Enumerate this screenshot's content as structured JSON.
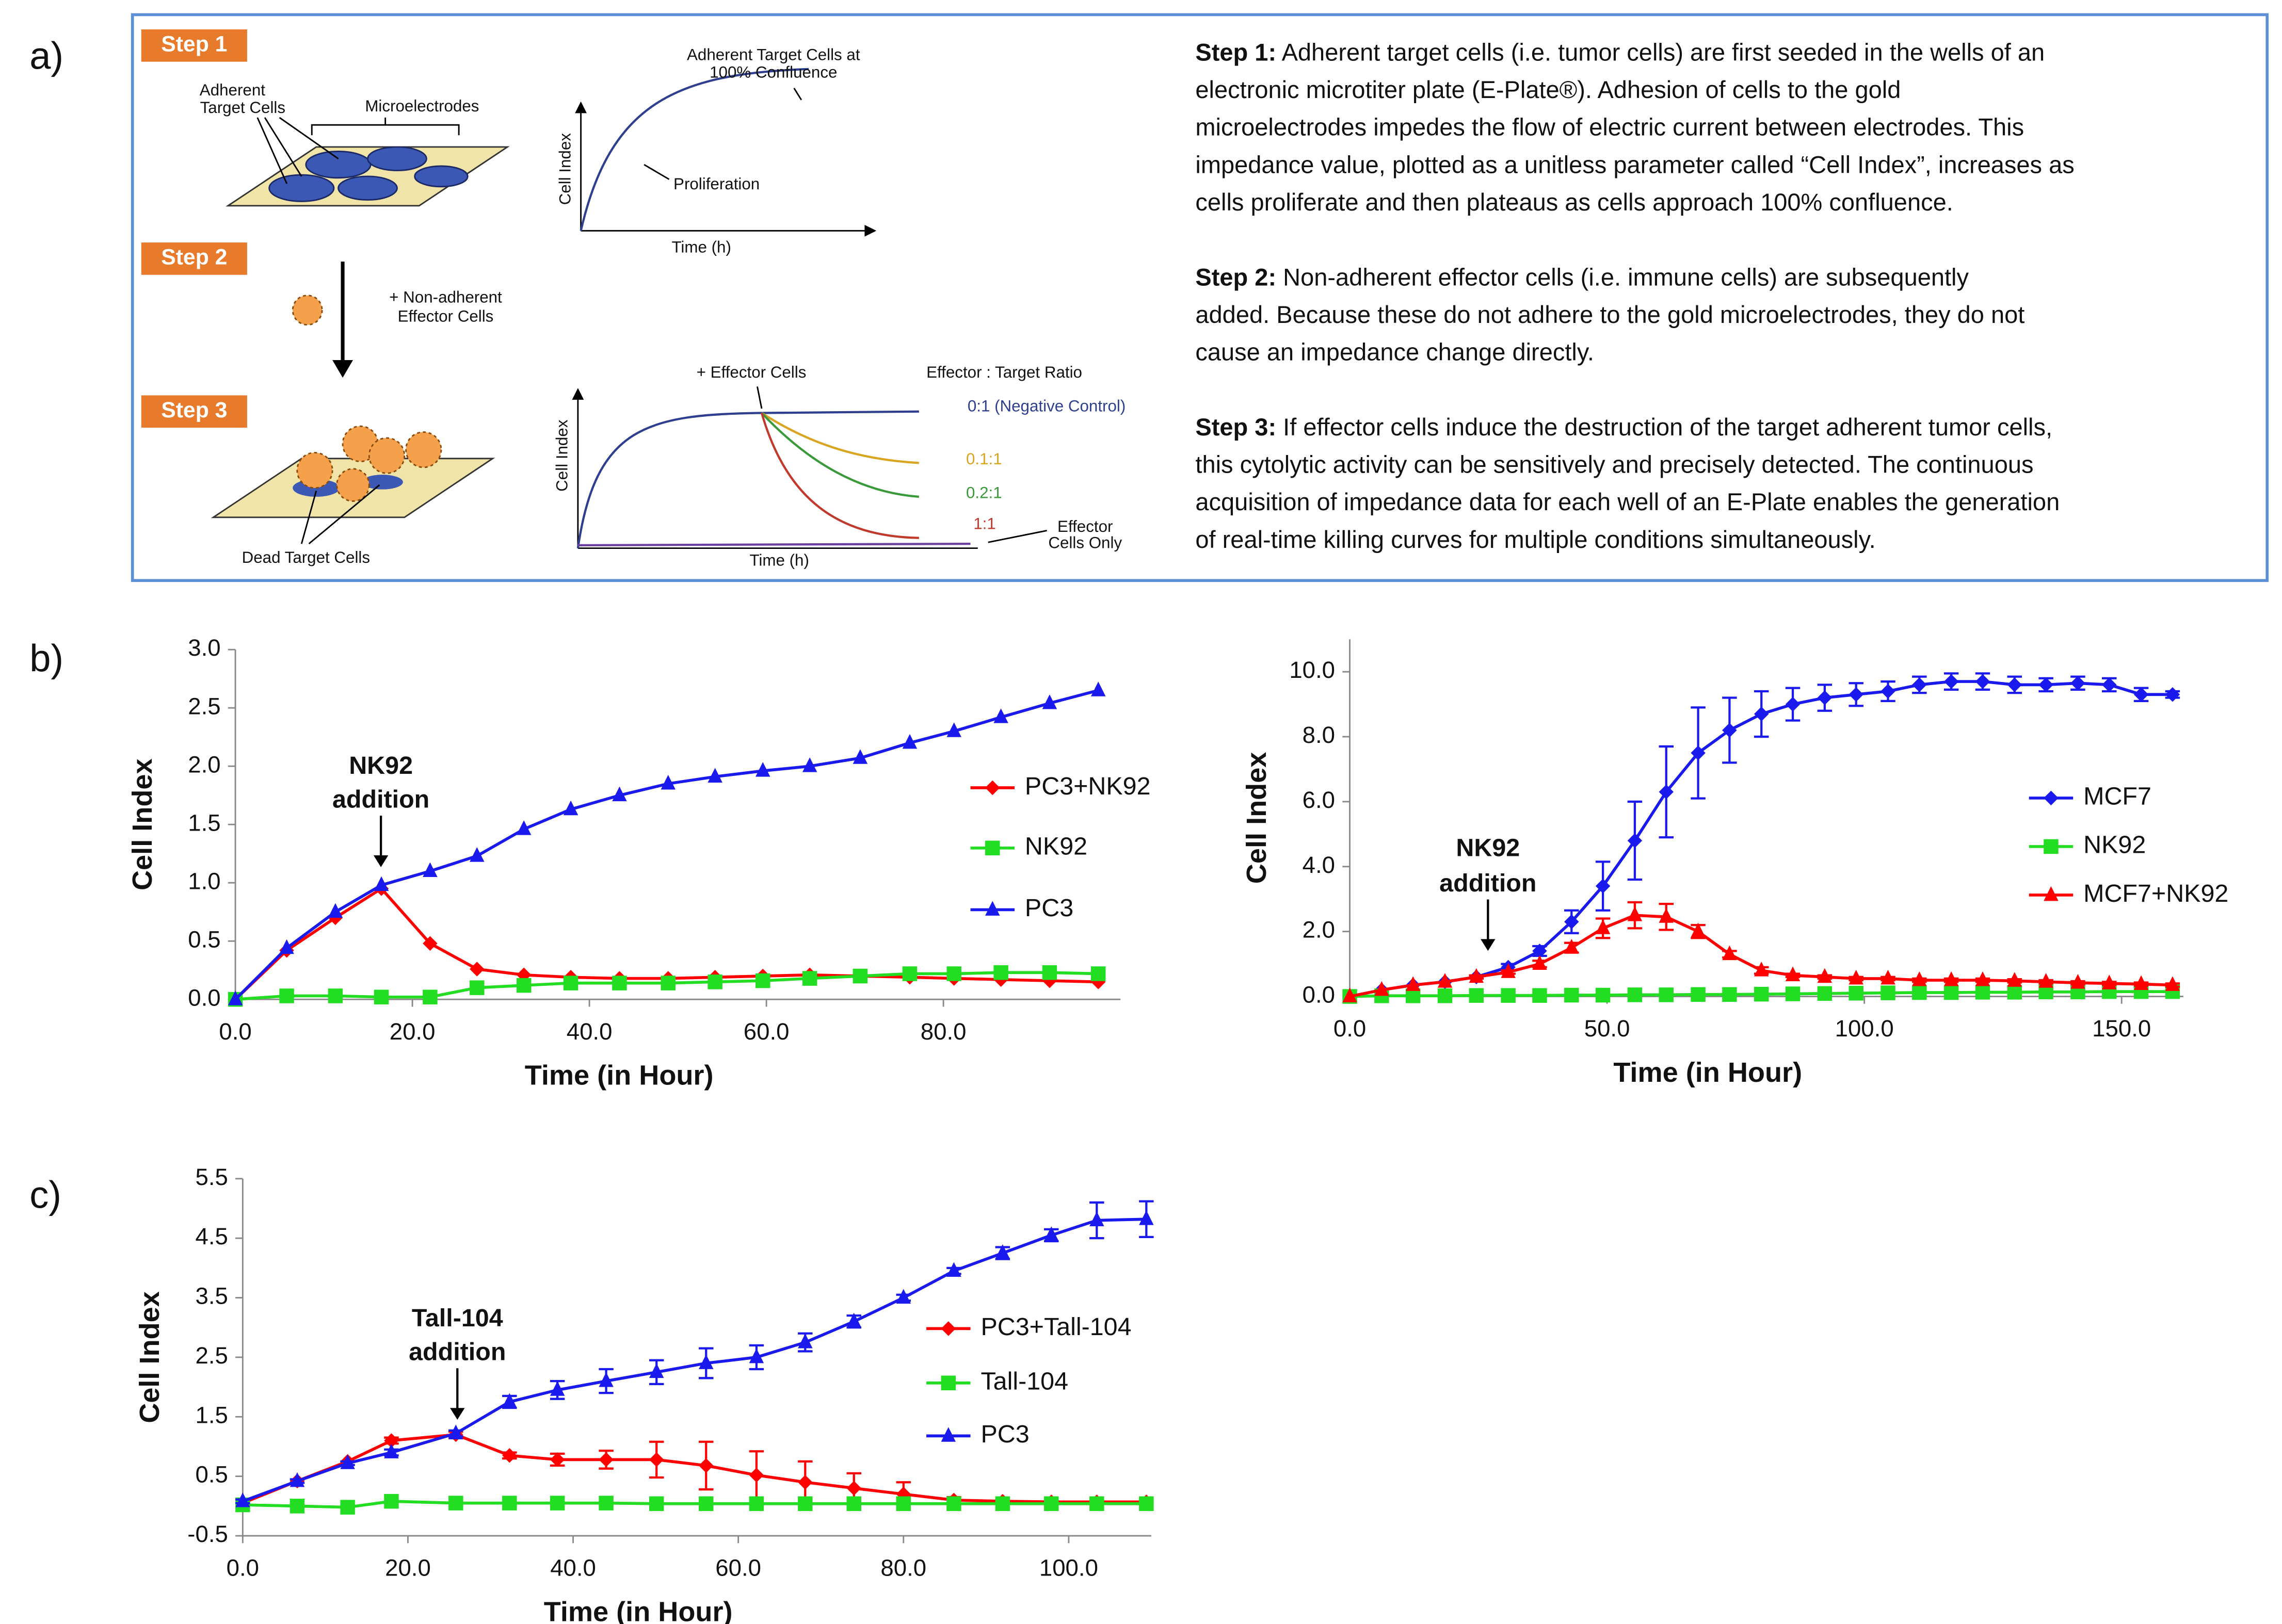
{
  "panel_labels": [
    "a)",
    "b)",
    "c)"
  ],
  "panel_a": {
    "steps": [
      "Step 1",
      "Step 2",
      "Step 3"
    ],
    "adherent_cells": [
      "Adherent",
      "Target Cells"
    ],
    "microelectrodes": "Microelectrodes",
    "effector_cells": [
      "+ Non-adherent",
      "Effector Cells"
    ],
    "dead_cells": "Dead Target Cells",
    "confluence": [
      "Adherent Target Cells at",
      "100% Confluence"
    ],
    "cell_index": "Cell Index",
    "proliferation": "Proliferation",
    "time": "Time (h)",
    "add_effector": "+ Effector Cells",
    "ratio_title": "Effector : Target Ratio",
    "ratios": [
      "0:1 (Negative Control)",
      "0.1:1",
      "0.2:1",
      "1:1"
    ],
    "effector_only": [
      "Effector",
      "Cells Only"
    ],
    "paragraphs": [
      {
        "lead": "Step 1:",
        "lines": [
          " Adherent target cells (i.e. tumor cells) are first seeded in the wells of an",
          "electronic microtiter plate (E-Plate®).  Adhesion of cells to the gold",
          "microelectrodes impedes the flow of electric current between electrodes.  This",
          "impedance value, plotted as a unitless parameter called “Cell Index”, increases as",
          "cells proliferate and then plateaus as cells approach 100% confluence."
        ]
      },
      {
        "lead": "Step 2:",
        "lines": [
          " Non-adherent effector cells (i.e. immune cells) are subsequently",
          "added.  Because these do not adhere to the gold microelectrodes, they do not",
          "cause an impedance change directly."
        ]
      },
      {
        "lead": "Step 3:",
        "lines": [
          " If effector cells induce the destruction of the target adherent tumor cells,",
          "this cytolytic activity can be sensitively and precisely detected.  The continuous",
          "acquisition of impedance data for each well of an E-Plate enables the generation",
          "of real-time killing curves for multiple conditions simultaneously."
        ]
      }
    ]
  },
  "chart_data": [
    {
      "type": "line",
      "x_label": "Time (in Hour)",
      "y_label": "Cell Index",
      "annotation": [
        "NK92",
        "addition"
      ],
      "legend": "right",
      "xlim": [
        0,
        100
      ],
      "xticks": [
        {
          "value": 0,
          "label": "0.0"
        },
        {
          "value": 20,
          "label": "20.0"
        },
        {
          "value": 40,
          "label": "40.0"
        },
        {
          "value": 60,
          "label": "60.0"
        },
        {
          "value": 80,
          "label": "80.0"
        }
      ],
      "ylim": [
        0,
        3
      ],
      "yticks": [
        {
          "value": 0,
          "label": "0.0"
        },
        0.5,
        {
          "value": 1,
          "label": "1.0"
        },
        1.5,
        {
          "value": 2,
          "label": "2.0"
        },
        2.5,
        {
          "value": 3,
          "label": "3.0"
        }
      ],
      "x": [
        0,
        5.8,
        11.3,
        16.5,
        22,
        27.3,
        32.6,
        37.9,
        43.4,
        48.9,
        54.2,
        59.6,
        64.9,
        70.6,
        76.2,
        81.2,
        86.5,
        92,
        97.5
      ],
      "series": [
        {
          "name": "PC3+NK92",
          "color": "#ff0000",
          "marker": "diamond",
          "values": [
            0,
            0.42,
            0.7,
            0.95,
            0.48,
            0.26,
            0.21,
            0.19,
            0.18,
            0.18,
            0.19,
            0.2,
            0.21,
            0.2,
            0.19,
            0.18,
            0.17,
            0.16,
            0.15
          ]
        },
        {
          "name": "NK92",
          "color": "#22dd22",
          "marker": "square",
          "values": [
            0,
            0.03,
            0.03,
            0.02,
            0.02,
            0.1,
            0.12,
            0.14,
            0.14,
            0.14,
            0.15,
            0.16,
            0.18,
            0.2,
            0.22,
            0.22,
            0.23,
            0.23,
            0.22
          ]
        },
        {
          "name": "PC3",
          "color": "#1a1aee",
          "marker": "triangle",
          "values": [
            0,
            0.44,
            0.75,
            0.98,
            1.1,
            1.23,
            1.46,
            1.63,
            1.75,
            1.85,
            1.91,
            1.96,
            2.0,
            2.07,
            2.2,
            2.3,
            2.42,
            2.54,
            2.65
          ]
        }
      ]
    },
    {
      "type": "line",
      "x_label": "Time (in Hour)",
      "y_label": "Cell Index",
      "annotation": [
        "NK92",
        "addition"
      ],
      "legend": "right",
      "xlim": [
        0,
        162
      ],
      "xticks": [
        {
          "value": 0,
          "label": "0.0"
        },
        {
          "value": 50,
          "label": "50.0"
        },
        {
          "value": 100,
          "label": "100.0"
        },
        {
          "value": 150,
          "label": "150.0"
        }
      ],
      "ylim": [
        0,
        11
      ],
      "yticks": [
        {
          "value": 0,
          "label": "0.0"
        },
        {
          "value": 2,
          "label": "2.0"
        },
        {
          "value": 4,
          "label": "4.0"
        },
        {
          "value": 6,
          "label": "6.0"
        },
        {
          "value": 8,
          "label": "8.0"
        },
        {
          "value": 10,
          "label": "10.0"
        }
      ],
      "x": [
        0,
        6.2,
        12.3,
        18.5,
        24.6,
        30.8,
        36.9,
        43.1,
        49.2,
        55.4,
        61.5,
        67.7,
        73.8,
        80,
        86.1,
        92.3,
        98.4,
        104.6,
        110.7,
        116.9,
        123,
        129.2,
        135.3,
        141.5,
        147.6,
        153.8,
        159.9
      ],
      "series": [
        {
          "name": "MCF7",
          "color": "#1a1aee",
          "marker": "diamond",
          "values": [
            0,
            0.2,
            0.35,
            0.45,
            0.6,
            0.9,
            1.4,
            2.3,
            3.4,
            4.8,
            6.3,
            7.5,
            8.2,
            8.7,
            9.0,
            9.2,
            9.3,
            9.4,
            9.6,
            9.7,
            9.7,
            9.6,
            9.6,
            9.65,
            9.6,
            9.3,
            9.3
          ],
          "errors": [
            0,
            0,
            0,
            0,
            0.05,
            0.1,
            0.15,
            0.35,
            0.75,
            1.2,
            1.4,
            1.4,
            1.0,
            0.7,
            0.5,
            0.4,
            0.35,
            0.3,
            0.25,
            0.25,
            0.25,
            0.25,
            0.2,
            0.2,
            0.2,
            0.2,
            0.1
          ]
        },
        {
          "name": "NK92",
          "color": "#22dd22",
          "marker": "square",
          "values": [
            0,
            0.02,
            0.02,
            0.02,
            0.03,
            0.03,
            0.03,
            0.04,
            0.04,
            0.05,
            0.05,
            0.06,
            0.06,
            0.07,
            0.08,
            0.09,
            0.1,
            0.11,
            0.12,
            0.12,
            0.13,
            0.13,
            0.14,
            0.14,
            0.15,
            0.15,
            0.15
          ]
        },
        {
          "name": "MCF7+NK92",
          "color": "#ff0000",
          "marker": "triangle",
          "values": [
            0,
            0.2,
            0.35,
            0.45,
            0.6,
            0.75,
            1.0,
            1.5,
            2.1,
            2.5,
            2.45,
            2.0,
            1.3,
            0.8,
            0.65,
            0.6,
            0.55,
            0.55,
            0.5,
            0.5,
            0.5,
            0.48,
            0.45,
            0.42,
            0.4,
            0.38,
            0.35
          ],
          "errors": [
            0,
            0,
            0,
            0,
            0.05,
            0.05,
            0.1,
            0.15,
            0.3,
            0.4,
            0.4,
            0.2,
            0.1,
            0.1,
            0.05,
            0.05,
            0.05,
            0.05,
            0.05,
            0.05,
            0.05,
            0.05,
            0.05,
            0.05,
            0.05,
            0.05,
            0.05
          ]
        }
      ]
    },
    {
      "type": "line",
      "x_label": "Time (in Hour)",
      "y_label": "Cell Index",
      "annotation": [
        "Tall-104",
        "addition"
      ],
      "legend": "right",
      "xlim": [
        0,
        110
      ],
      "xticks": [
        {
          "value": 0,
          "label": "0.0"
        },
        {
          "value": 20,
          "label": "20.0"
        },
        {
          "value": 40,
          "label": "40.0"
        },
        {
          "value": 60,
          "label": "60.0"
        },
        {
          "value": 80,
          "label": "80.0"
        },
        {
          "value": 100,
          "label": "100.0"
        }
      ],
      "ylim": [
        -0.5,
        5.5
      ],
      "yticks": [
        -0.5,
        0.5,
        1.5,
        2.5,
        3.5,
        4.5,
        5.5
      ],
      "x": [
        0,
        6.6,
        12.7,
        18,
        25.8,
        32.3,
        38.1,
        44,
        50.1,
        56.1,
        62.2,
        68.1,
        74,
        80,
        86.1,
        92,
        97.9,
        103.4,
        109.4
      ],
      "series": [
        {
          "name": "PC3+Tall-104",
          "color": "#ff0000",
          "marker": "diamond",
          "values": [
            0.05,
            0.42,
            0.75,
            1.1,
            1.2,
            0.85,
            0.78,
            0.78,
            0.78,
            0.68,
            0.52,
            0.4,
            0.3,
            0.2,
            0.1,
            0.08,
            0.07,
            0.07,
            0.07
          ],
          "errors": [
            0,
            0,
            0,
            0.05,
            0.05,
            0.05,
            0.1,
            0.15,
            0.3,
            0.4,
            0.4,
            0.35,
            0.25,
            0.2,
            0.05,
            0.03,
            0.02,
            0.02,
            0.02
          ]
        },
        {
          "name": "Tall-104",
          "color": "#22dd22",
          "marker": "square",
          "values": [
            0.02,
            0,
            -0.02,
            0.08,
            0.05,
            0.05,
            0.05,
            0.05,
            0.04,
            0.04,
            0.04,
            0.04,
            0.04,
            0.04,
            0.04,
            0.04,
            0.04,
            0.04,
            0.04
          ]
        },
        {
          "name": "PC3",
          "color": "#1a1aee",
          "marker": "triangle",
          "values": [
            0.08,
            0.42,
            0.72,
            0.9,
            1.22,
            1.75,
            1.95,
            2.1,
            2.25,
            2.4,
            2.5,
            2.75,
            3.1,
            3.5,
            3.95,
            4.25,
            4.55,
            4.8,
            4.82
          ],
          "errors": [
            0.03,
            0.03,
            0.03,
            0.05,
            0.05,
            0.1,
            0.15,
            0.2,
            0.2,
            0.25,
            0.2,
            0.15,
            0.1,
            0.05,
            0.05,
            0.1,
            0.1,
            0.3,
            0.3
          ]
        }
      ]
    }
  ]
}
